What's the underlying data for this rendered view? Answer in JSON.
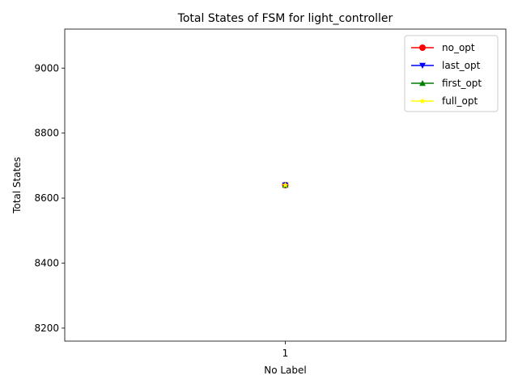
{
  "chart_data": {
    "type": "line",
    "title": "Total States of FSM for light_controller",
    "xlabel": "No Label",
    "ylabel": "Total States",
    "categories": [
      "1"
    ],
    "ylim": [
      8160,
      9120
    ],
    "yticks": [
      8200,
      8400,
      8600,
      8800,
      9000
    ],
    "grid": false,
    "legend_position": "top-right",
    "series": [
      {
        "name": "no_opt",
        "values": [
          8640
        ],
        "color": "#ff0000",
        "marker": "circle"
      },
      {
        "name": "last_opt",
        "values": [
          8640
        ],
        "color": "#0000ff",
        "marker": "triangle-down"
      },
      {
        "name": "first_opt",
        "values": [
          8640
        ],
        "color": "#008000",
        "marker": "triangle-up"
      },
      {
        "name": "full_opt",
        "values": [
          8640
        ],
        "color": "#ffff00",
        "marker": "star"
      }
    ]
  }
}
